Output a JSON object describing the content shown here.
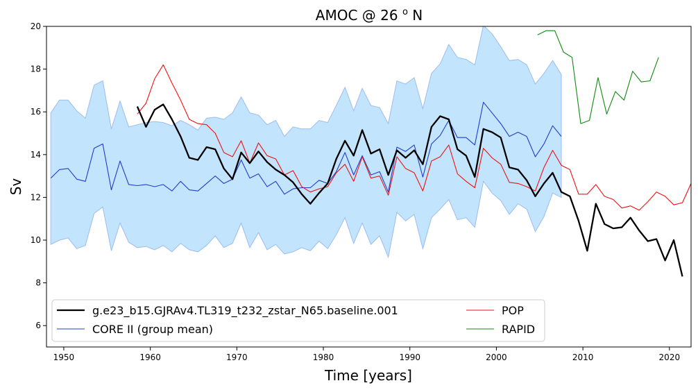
{
  "chart_data": {
    "type": "line",
    "title": "AMOC @ 26 ",
    "title_sup": "o",
    "title_suffix": " N",
    "xlabel": "Time [years]",
    "ylabel": "Sv",
    "xlim": [
      1948,
      2022.5
    ],
    "ylim": [
      5,
      20
    ],
    "xticks": [
      1950,
      1960,
      1970,
      1980,
      1990,
      2000,
      2010,
      2020
    ],
    "yticks": [
      6,
      8,
      10,
      12,
      14,
      16,
      18,
      20
    ],
    "grid": false,
    "legend_position": "lower-left",
    "band": {
      "name": "CORE II spread",
      "color": "#c2e4fd",
      "edge_color": "#9bbcf2",
      "x": [
        1948.5,
        1949.5,
        1950.5,
        1951.5,
        1952.5,
        1953.5,
        1954.5,
        1955.5,
        1956.5,
        1957.5,
        1958.5,
        1959.5,
        1960.5,
        1961.5,
        1962.5,
        1963.5,
        1964.5,
        1965.5,
        1966.5,
        1967.5,
        1968.5,
        1969.5,
        1970.5,
        1971.5,
        1972.5,
        1973.5,
        1974.5,
        1975.5,
        1976.5,
        1977.5,
        1978.5,
        1979.5,
        1980.5,
        1981.5,
        1982.5,
        1983.5,
        1984.5,
        1985.5,
        1986.5,
        1987.5,
        1988.5,
        1989.5,
        1990.5,
        1991.5,
        1992.5,
        1993.5,
        1994.5,
        1995.5,
        1996.5,
        1997.5,
        1998.5,
        1999.5,
        2000.5,
        2001.5,
        2002.5,
        2003.5,
        2004.5,
        2005.5,
        2006.5,
        2007.5
      ],
      "upper": [
        15.95,
        16.55,
        16.55,
        16.05,
        15.7,
        17.25,
        17.45,
        15.2,
        16.5,
        15.3,
        15.4,
        15.5,
        15.55,
        15.5,
        15.35,
        15.6,
        15.4,
        15.15,
        15.7,
        15.75,
        15.65,
        15.95,
        16.7,
        15.95,
        15.85,
        15.4,
        15.6,
        14.85,
        15.3,
        15.2,
        15.2,
        15.6,
        15.5,
        16.3,
        17.15,
        16.05,
        17.1,
        16.3,
        16.2,
        15.45,
        17.45,
        17.3,
        17.6,
        16.15,
        17.8,
        18.25,
        19.15,
        18.55,
        18.45,
        18.2,
        20.05,
        19.65,
        19.05,
        18.4,
        18.45,
        18.2,
        17.3,
        17.8,
        18.4,
        17.75
      ],
      "lower": [
        9.8,
        10.0,
        10.1,
        9.6,
        9.75,
        11.25,
        11.55,
        9.5,
        10.8,
        9.9,
        9.65,
        9.7,
        9.55,
        9.75,
        9.45,
        9.85,
        9.55,
        9.45,
        9.75,
        10.2,
        9.65,
        9.85,
        10.8,
        9.65,
        10.35,
        9.55,
        9.8,
        9.35,
        9.45,
        9.65,
        9.5,
        9.95,
        9.6,
        10.25,
        11.05,
        9.85,
        10.8,
        9.8,
        10.2,
        9.2,
        11.3,
        10.9,
        11.2,
        9.6,
        11.05,
        11.45,
        11.9,
        10.95,
        11.05,
        10.6,
        12.75,
        12.2,
        11.85,
        11.2,
        11.7,
        11.45,
        10.4,
        11.1,
        12.2,
        12.0
      ]
    },
    "series": [
      {
        "name": "g.e23_b15.GJRAv4.TL319_t232_zstar_N65.baseline.001",
        "color": "#000000",
        "width": 2.3,
        "x": [
          1958.5,
          1959.5,
          1960.5,
          1961.5,
          1962.5,
          1963.5,
          1964.5,
          1965.5,
          1966.5,
          1967.5,
          1968.5,
          1969.5,
          1970.5,
          1971.5,
          1972.5,
          1973.5,
          1974.5,
          1975.5,
          1976.5,
          1977.5,
          1978.5,
          1979.5,
          1980.5,
          1981.5,
          1982.5,
          1983.5,
          1984.5,
          1985.5,
          1986.5,
          1987.5,
          1988.5,
          1989.5,
          1990.5,
          1991.5,
          1992.5,
          1993.5,
          1994.5,
          1995.5,
          1996.5,
          1997.5,
          1998.5,
          1999.5,
          2000.5,
          2001.5,
          2002.5,
          2003.5,
          2004.5,
          2005.5,
          2006.5,
          2007.5,
          2008.5,
          2009.5,
          2010.5,
          2011.5,
          2012.5,
          2013.5,
          2014.5,
          2015.5,
          2016.5,
          2017.5,
          2018.5,
          2019.5,
          2020.5,
          2021.5
        ],
        "values": [
          16.25,
          15.3,
          16.1,
          16.35,
          15.65,
          14.85,
          13.85,
          13.75,
          14.35,
          14.25,
          13.35,
          12.85,
          14.1,
          13.6,
          14.15,
          13.65,
          13.3,
          13.05,
          12.7,
          12.15,
          11.7,
          12.2,
          12.65,
          13.8,
          14.65,
          13.95,
          15.15,
          14.05,
          14.25,
          13.05,
          14.2,
          13.85,
          14.2,
          13.55,
          15.3,
          15.8,
          15.65,
          14.25,
          13.95,
          12.95,
          15.2,
          15.05,
          14.8,
          13.4,
          13.3,
          12.8,
          12.05,
          12.65,
          13.15,
          12.25,
          12.05,
          10.9,
          9.5,
          11.7,
          10.75,
          10.55,
          10.6,
          11.05,
          10.45,
          9.95,
          10.05,
          9.05,
          10.0,
          8.3
        ]
      },
      {
        "name": "CORE II (group mean)",
        "color": "#1f3ccc",
        "width": 1.1,
        "x": [
          1948.5,
          1949.5,
          1950.5,
          1951.5,
          1952.5,
          1953.5,
          1954.5,
          1955.5,
          1956.5,
          1957.5,
          1958.5,
          1959.5,
          1960.5,
          1961.5,
          1962.5,
          1963.5,
          1964.5,
          1965.5,
          1966.5,
          1967.5,
          1968.5,
          1969.5,
          1970.5,
          1971.5,
          1972.5,
          1973.5,
          1974.5,
          1975.5,
          1976.5,
          1977.5,
          1978.5,
          1979.5,
          1980.5,
          1981.5,
          1982.5,
          1983.5,
          1984.5,
          1985.5,
          1986.5,
          1987.5,
          1988.5,
          1989.5,
          1990.5,
          1991.5,
          1992.5,
          1993.5,
          1994.5,
          1995.5,
          1996.5,
          1997.5,
          1998.5,
          1999.5,
          2000.5,
          2001.5,
          2002.5,
          2003.5,
          2004.5,
          2005.5,
          2006.5,
          2007.5
        ],
        "values": [
          12.9,
          13.3,
          13.35,
          12.85,
          12.75,
          14.3,
          14.5,
          12.35,
          13.7,
          12.6,
          12.55,
          12.6,
          12.5,
          12.6,
          12.3,
          12.75,
          12.35,
          12.3,
          12.65,
          13.0,
          12.65,
          12.85,
          13.75,
          12.9,
          13.1,
          12.5,
          12.75,
          12.15,
          12.4,
          12.45,
          12.45,
          12.8,
          12.65,
          13.2,
          14.1,
          13.05,
          13.95,
          13.05,
          13.2,
          12.25,
          14.35,
          14.15,
          14.45,
          12.95,
          14.5,
          14.9,
          15.6,
          14.8,
          14.8,
          14.45,
          16.45,
          15.95,
          15.45,
          14.85,
          15.05,
          14.85,
          13.9,
          14.5,
          15.35,
          14.85
        ]
      },
      {
        "name": "POP",
        "color": "#ee1111",
        "width": 1.1,
        "x": [
          1958.5,
          1959.5,
          1960.5,
          1961.5,
          1962.5,
          1963.5,
          1964.5,
          1965.5,
          1966.5,
          1967.5,
          1968.5,
          1969.5,
          1970.5,
          1971.5,
          1972.5,
          1973.5,
          1974.5,
          1975.5,
          1976.5,
          1977.5,
          1978.5,
          1979.5,
          1980.5,
          1981.5,
          1982.5,
          1983.5,
          1984.5,
          1985.5,
          1986.5,
          1987.5,
          1988.5,
          1989.5,
          1990.5,
          1991.5,
          1992.5,
          1993.5,
          1994.5,
          1995.5,
          1996.5,
          1997.5,
          1998.5,
          1999.5,
          2000.5,
          2001.5,
          2002.5,
          2003.5,
          2004.5,
          2005.5,
          2006.5,
          2007.5,
          2008.5,
          2009.5,
          2010.5,
          2011.5,
          2012.5,
          2013.5,
          2014.5,
          2015.5,
          2016.5,
          2017.5,
          2018.5,
          2019.5,
          2020.5,
          2021.5,
          2022.5
        ],
        "values": [
          15.9,
          16.4,
          17.55,
          18.2,
          17.35,
          16.55,
          15.65,
          15.45,
          15.4,
          15.0,
          14.1,
          13.9,
          14.65,
          13.6,
          14.55,
          13.95,
          13.8,
          13.05,
          13.25,
          12.5,
          12.25,
          12.4,
          12.5,
          13.15,
          13.55,
          12.75,
          13.9,
          12.9,
          13.0,
          12.1,
          13.9,
          13.35,
          13.15,
          12.3,
          13.7,
          13.9,
          14.45,
          13.1,
          12.75,
          12.45,
          14.3,
          13.85,
          13.55,
          12.7,
          12.65,
          12.5,
          12.3,
          13.4,
          14.2,
          13.5,
          13.3,
          12.15,
          12.15,
          12.6,
          12.05,
          11.9,
          11.5,
          11.6,
          11.4,
          11.8,
          12.25,
          12.05,
          11.65,
          11.75,
          12.65
        ]
      },
      {
        "name": "RAPID",
        "color": "#118811",
        "width": 1.1,
        "x": [
          2004.75,
          2005.75,
          2006.75,
          2007.75,
          2008.75,
          2009.75,
          2010.75,
          2011.75,
          2012.75,
          2013.75,
          2014.75,
          2015.75,
          2016.75,
          2017.75,
          2018.75
        ],
        "values": [
          19.6,
          19.8,
          19.8,
          18.8,
          18.55,
          15.45,
          15.6,
          17.6,
          15.9,
          16.95,
          16.55,
          17.9,
          17.4,
          17.45,
          18.55
        ]
      }
    ]
  }
}
